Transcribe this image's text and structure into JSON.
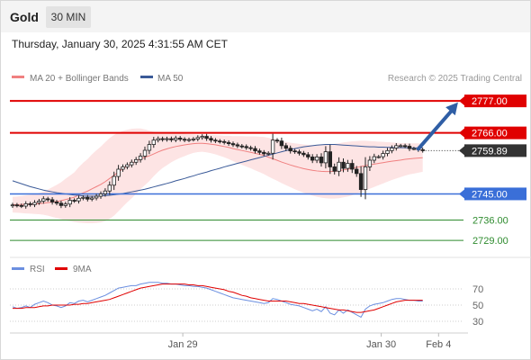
{
  "header": {
    "instrument": "Gold",
    "timeframe": "30 MIN",
    "datetime": "Thursday, January 30, 2025 4:31:55 AM CET"
  },
  "legend": {
    "items": [
      {
        "label": "MA 20 + Bollinger Bands",
        "color": "#f08080"
      },
      {
        "label": "MA 50",
        "color": "#3a5a98"
      }
    ],
    "source": "Research © 2025 Trading Central"
  },
  "colors": {
    "up": "#ffffff",
    "down": "#222222",
    "resistance": "#e00000",
    "support": "#3a6fd8",
    "target": "#2e8b2e",
    "arrow": "#2f5ea5",
    "bands": "#fde4e4",
    "rsi": "#6b8fe0",
    "rsi_ma": "#e00000"
  },
  "chart_data": [
    {
      "type": "candlestick",
      "ylim": [
        2725,
        2782
      ],
      "x_tick_labels": [
        {
          "label": "Jan 29",
          "index": 39
        },
        {
          "label": "Jan 30",
          "index": 84
        },
        {
          "label": "Feb 4",
          "index": 97
        }
      ],
      "price_levels": [
        {
          "value": 2777.0,
          "label": "2777.00",
          "kind": "resistance"
        },
        {
          "value": 2766.0,
          "label": "2766.00",
          "kind": "resistance"
        },
        {
          "value": 2759.89,
          "label": "2759.89",
          "kind": "last"
        },
        {
          "value": 2745.0,
          "label": "2745.00",
          "kind": "support"
        },
        {
          "value": 2736.0,
          "label": "2736.00",
          "kind": "target"
        },
        {
          "value": 2729.0,
          "label": "2729.00",
          "kind": "target"
        }
      ],
      "arrow": {
        "from_index": 92,
        "from_value": 2760.5,
        "to_index": 101,
        "to_value": 2776.5
      },
      "close": [
        2741.2,
        2741.0,
        2740.8,
        2741.6,
        2741.3,
        2742.0,
        2742.5,
        2743.3,
        2743.0,
        2742.2,
        2741.8,
        2741.0,
        2741.5,
        2742.8,
        2742.6,
        2743.5,
        2743.8,
        2743.2,
        2743.6,
        2744.2,
        2745.0,
        2746.0,
        2748.0,
        2751.0,
        2753.5,
        2754.3,
        2755.0,
        2755.9,
        2756.8,
        2758.0,
        2760.0,
        2762.0,
        2763.5,
        2764.0,
        2763.7,
        2764.0,
        2763.6,
        2764.2,
        2763.8,
        2763.5,
        2763.7,
        2763.9,
        2764.4,
        2764.8,
        2764.1,
        2763.5,
        2763.2,
        2763.0,
        2762.7,
        2762.3,
        2761.9,
        2761.5,
        2761.3,
        2760.9,
        2760.6,
        2759.8,
        2759.3,
        2758.8,
        2759.0,
        2763.5,
        2763.2,
        2761.6,
        2760.7,
        2759.8,
        2759.5,
        2759.0,
        2758.5,
        2757.7,
        2756.6,
        2757.7,
        2755.7,
        2759.5,
        2754.3,
        2752.8,
        2755.9,
        2753.8,
        2755.5,
        2753.5,
        2752.0,
        2746.5,
        2754.3,
        2756.6,
        2757.8,
        2757.8,
        2758.9,
        2759.9,
        2760.8,
        2761.6,
        2761.6,
        2761.4,
        2760.6,
        2760.6,
        2760.2,
        2759.9
      ],
      "bb_upper": [
        2744.0,
        2744.1,
        2744.3,
        2744.5,
        2744.7,
        2744.9,
        2745.3,
        2745.8,
        2746.5,
        2747.3,
        2748.1,
        2749.0,
        2750.2,
        2751.3,
        2752.4,
        2754.2,
        2755.7,
        2757.0,
        2758.6,
        2760.0,
        2761.3,
        2762.8,
        2764.2,
        2765.3,
        2766.1,
        2766.7,
        2767.1,
        2767.4,
        2767.5,
        2767.5,
        2767.2,
        2766.8,
        2766.4,
        2766.3,
        2766.2,
        2766.1,
        2766.0,
        2765.9,
        2765.8,
        2765.7,
        2765.6,
        2765.5,
        2765.4,
        2765.3,
        2765.3,
        2765.2,
        2765.2,
        2765.1,
        2765.0,
        2765.0,
        2764.9,
        2764.9,
        2764.9,
        2764.8,
        2764.8,
        2764.8,
        2764.7,
        2764.6,
        2764.3,
        2764.0,
        2763.6,
        2763.2,
        2762.9,
        2762.6,
        2762.4,
        2762.2,
        2762.0,
        2761.9,
        2761.8,
        2761.8,
        2761.8,
        2761.9,
        2762.0,
        2762.2,
        2762.4,
        2762.7,
        2762.9,
        2763.1,
        2763.2,
        2763.3,
        2763.3,
        2763.2,
        2763.1,
        2763.0,
        2762.9,
        2762.8,
        2762.7,
        2762.6,
        2762.5,
        2762.5,
        2762.4,
        2762.4,
        2762.4,
        2762.3
      ],
      "bb_lower": [
        2738.6,
        2738.5,
        2738.4,
        2738.3,
        2738.2,
        2738.1,
        2738.0,
        2737.8,
        2737.5,
        2737.1,
        2736.7,
        2736.3,
        2735.9,
        2735.6,
        2735.3,
        2735.1,
        2735.0,
        2734.9,
        2734.9,
        2735.0,
        2735.2,
        2735.6,
        2736.4,
        2737.5,
        2739.0,
        2740.6,
        2742.1,
        2743.5,
        2745.0,
        2746.7,
        2748.0,
        2749.4,
        2751.1,
        2752.6,
        2753.9,
        2754.9,
        2755.9,
        2756.7,
        2757.4,
        2758.0,
        2758.6,
        2759.1,
        2759.4,
        2759.5,
        2759.3,
        2759.0,
        2758.6,
        2758.1,
        2757.6,
        2757.0,
        2756.3,
        2755.6,
        2755.0,
        2754.4,
        2753.8,
        2753.1,
        2752.5,
        2751.8,
        2751.0,
        2750.2,
        2749.5,
        2748.7,
        2748.0,
        2747.3,
        2746.6,
        2746.0,
        2745.4,
        2744.9,
        2744.4,
        2744.0,
        2743.7,
        2743.5,
        2743.4,
        2743.4,
        2743.5,
        2743.8,
        2744.1,
        2744.5,
        2745.0,
        2745.6,
        2746.2,
        2746.8,
        2747.4,
        2748.0,
        2748.6,
        2749.2,
        2749.8,
        2750.3,
        2750.8,
        2751.3,
        2751.7,
        2752.0,
        2752.3,
        2752.6
      ],
      "ma50": [
        2749.5,
        2749.0,
        2748.5,
        2748.0,
        2747.5,
        2747.1,
        2746.7,
        2746.3,
        2746.0,
        2745.7,
        2745.4,
        2745.2,
        2745.0,
        2744.8,
        2744.6,
        2744.5,
        2744.3,
        2744.2,
        2744.2,
        2744.2,
        2744.3,
        2744.4,
        2744.5,
        2744.7,
        2744.9,
        2745.1,
        2745.4,
        2745.7,
        2746.0,
        2746.3,
        2746.6,
        2747.0,
        2747.4,
        2747.8,
        2748.2,
        2748.6,
        2749.0,
        2749.5,
        2749.9,
        2750.3,
        2750.8,
        2751.2,
        2751.7,
        2752.1,
        2752.5,
        2753.0,
        2753.4,
        2753.8,
        2754.3,
        2754.7,
        2755.1,
        2755.5,
        2755.9,
        2756.3,
        2756.7,
        2757.1,
        2757.5,
        2757.9,
        2758.3,
        2758.7,
        2759.1,
        2759.5,
        2759.9,
        2760.3,
        2760.6,
        2760.9,
        2761.2,
        2761.4,
        2761.6,
        2761.8,
        2761.9,
        2762.0,
        2762.0,
        2762.0,
        2761.9,
        2761.8,
        2761.7,
        2761.6,
        2761.5,
        2761.4,
        2761.3,
        2761.2,
        2761.2,
        2761.1,
        2761.1,
        2761.0,
        2761.0,
        2760.9,
        2760.9,
        2760.9,
        2760.8,
        2760.8,
        2760.8,
        2760.8
      ]
    },
    {
      "type": "line",
      "name": "RSI",
      "ylim": [
        20,
        80
      ],
      "y_ticks": [
        70,
        50,
        30
      ],
      "series": [
        {
          "name": "RSI",
          "values": [
            48,
            46,
            47,
            49,
            47,
            51,
            53,
            55,
            53,
            50,
            49,
            47,
            49,
            53,
            52,
            55,
            56,
            54,
            56,
            58,
            60,
            62,
            65,
            68,
            71,
            72,
            73,
            74,
            74,
            76,
            77,
            78,
            78,
            78,
            77,
            77,
            76,
            76,
            75,
            74,
            74,
            73,
            73,
            72,
            71,
            69,
            67,
            65,
            63,
            61,
            59,
            58,
            57,
            56,
            55,
            54,
            53,
            52,
            53,
            58,
            57,
            55,
            53,
            51,
            50,
            49,
            47,
            45,
            43,
            45,
            42,
            48,
            40,
            38,
            44,
            40,
            44,
            41,
            38,
            35,
            45,
            49,
            51,
            52,
            53,
            55,
            57,
            58,
            58,
            57,
            56,
            56,
            55,
            55
          ]
        },
        {
          "name": "9MA",
          "values": [
            46,
            46,
            46,
            47,
            47,
            47,
            48,
            49,
            49,
            50,
            50,
            50,
            50,
            50,
            51,
            51,
            52,
            52,
            53,
            54,
            55,
            56,
            57,
            59,
            61,
            63,
            65,
            67,
            69,
            71,
            72,
            73,
            74,
            75,
            76,
            76,
            76,
            76,
            76,
            76,
            75,
            75,
            74,
            74,
            73,
            72,
            71,
            70,
            69,
            67,
            66,
            64,
            62,
            61,
            59,
            58,
            57,
            56,
            55,
            55,
            55,
            55,
            55,
            54,
            53,
            52,
            52,
            51,
            50,
            49,
            48,
            47,
            46,
            45,
            44,
            44,
            43,
            42,
            41,
            41,
            42,
            43,
            44,
            46,
            48,
            50,
            52,
            54,
            55,
            56,
            56,
            56,
            56,
            56
          ]
        }
      ]
    }
  ]
}
